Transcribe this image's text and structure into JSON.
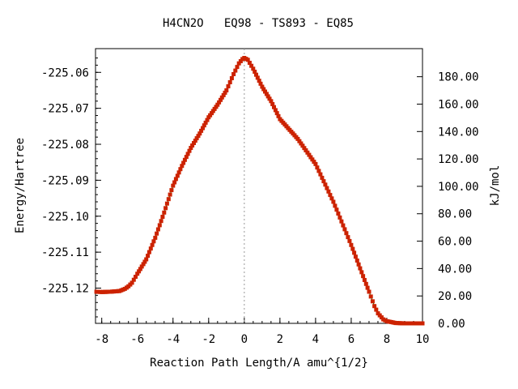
{
  "chart_data": {
    "type": "line",
    "title": "H4CN2O   EQ98 - TS893 - EQ85",
    "xlabel": "Reaction Path Length/A amu^{1/2}",
    "ylabel": "Energy/Hartree",
    "y2label": "kJ/mol",
    "xlim": [
      -8.35,
      10.0
    ],
    "ylim": [
      -225.1298,
      -225.0534
    ],
    "y2lim": [
      0.0,
      200.5
    ],
    "x_ticks": [
      -8,
      -6,
      -4,
      -2,
      0,
      2,
      4,
      6,
      8,
      10
    ],
    "y_ticks": [
      -225.06,
      -225.07,
      -225.08,
      -225.09,
      -225.1,
      -225.11,
      -225.12
    ],
    "y_tick_labels": [
      "-225.06",
      "-225.07",
      "-225.08",
      "-225.09",
      "-225.10",
      "-225.11",
      "-225.12"
    ],
    "y2_ticks": [
      0,
      20,
      40,
      60,
      80,
      100,
      120,
      140,
      160,
      180
    ],
    "y2_tick_labels": [
      "0.00",
      "20.00",
      "40.00",
      "60.00",
      "80.00",
      "100.00",
      "120.00",
      "140.00",
      "160.00",
      "180.00"
    ],
    "ts_marker_x": 0.0,
    "grid": false,
    "colors": {
      "line": "#008000",
      "marker": "#cc2200",
      "ts_line": "#999999",
      "axis": "#000000"
    },
    "series": [
      {
        "x": [
          -8.3,
          -8.0,
          -7.5,
          -7.0,
          -6.7,
          -6.5,
          -6.3,
          -6.0,
          -5.5,
          -5.0,
          -4.5,
          -4.0,
          -3.5,
          -3.0,
          -2.5,
          -2.0,
          -1.5,
          -1.0,
          -0.6,
          -0.3,
          -0.1,
          0.0,
          0.2,
          0.5,
          1.0,
          1.5,
          2.0,
          3.0,
          4.0,
          5.0,
          6.0,
          6.5,
          7.0,
          7.3,
          7.5,
          7.8,
          8.0,
          8.5,
          9.0,
          10.0
        ],
        "y": [
          -225.121,
          -225.1211,
          -225.121,
          -225.1208,
          -225.1202,
          -225.1195,
          -225.1185,
          -225.116,
          -225.112,
          -225.106,
          -225.099,
          -225.0915,
          -225.086,
          -225.081,
          -225.077,
          -225.0725,
          -225.069,
          -225.065,
          -225.0605,
          -225.0575,
          -225.0563,
          -225.056,
          -225.0565,
          -225.059,
          -225.064,
          -225.068,
          -225.073,
          -225.0785,
          -225.0855,
          -225.096,
          -225.108,
          -225.1145,
          -225.121,
          -225.125,
          -225.127,
          -225.1287,
          -225.1292,
          -225.1297,
          -225.1298,
          -225.1298
        ]
      }
    ]
  }
}
